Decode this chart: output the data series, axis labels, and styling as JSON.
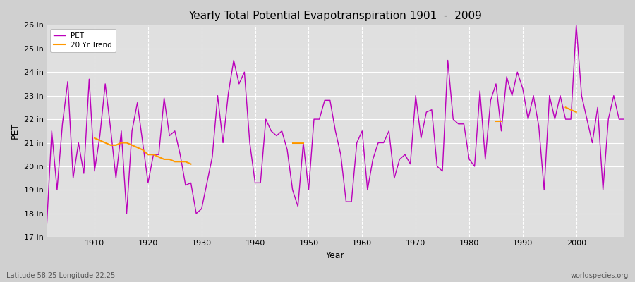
{
  "title": "Yearly Total Potential Evapotranspiration 1901  -  2009",
  "xlabel": "Year",
  "ylabel": "PET",
  "bottom_left_label": "Latitude 58.25 Longitude 22.25",
  "bottom_right_label": "worldspecies.org",
  "ylim": [
    17,
    26
  ],
  "ytick_labels": [
    "17 in",
    "18 in",
    "19 in",
    "20 in",
    "21 in",
    "22 in",
    "23 in",
    "24 in",
    "25 in",
    "26 in"
  ],
  "ytick_values": [
    17,
    18,
    19,
    20,
    21,
    22,
    23,
    24,
    25,
    26
  ],
  "pet_color": "#bb00bb",
  "trend_color": "#ff9900",
  "fig_bg_color": "#d0d0d0",
  "plot_bg_color": "#e0e0e0",
  "grid_color": "#ffffff",
  "pet_years": [
    1901,
    1902,
    1903,
    1904,
    1905,
    1906,
    1907,
    1908,
    1909,
    1910,
    1911,
    1912,
    1913,
    1914,
    1915,
    1916,
    1917,
    1918,
    1919,
    1920,
    1921,
    1922,
    1923,
    1924,
    1925,
    1926,
    1927,
    1928,
    1929,
    1930,
    1931,
    1932,
    1933,
    1934,
    1935,
    1936,
    1937,
    1938,
    1939,
    1940,
    1941,
    1942,
    1943,
    1944,
    1945,
    1946,
    1947,
    1948,
    1949,
    1950,
    1951,
    1952,
    1953,
    1954,
    1955,
    1956,
    1957,
    1958,
    1959,
    1960,
    1961,
    1962,
    1963,
    1964,
    1965,
    1966,
    1967,
    1968,
    1969,
    1970,
    1971,
    1972,
    1973,
    1974,
    1975,
    1976,
    1977,
    1978,
    1979,
    1980,
    1981,
    1982,
    1983,
    1984,
    1985,
    1986,
    1987,
    1988,
    1989,
    1990,
    1991,
    1992,
    1993,
    1994,
    1995,
    1996,
    1997,
    1998,
    1999,
    2000,
    2001,
    2002,
    2003,
    2004,
    2005,
    2006,
    2007,
    2008,
    2009
  ],
  "pet_values": [
    17.2,
    21.5,
    19.0,
    21.8,
    23.6,
    19.5,
    21.0,
    19.7,
    23.7,
    19.8,
    21.3,
    23.5,
    21.6,
    19.5,
    21.5,
    18.0,
    21.5,
    22.7,
    21.0,
    19.3,
    20.5,
    20.5,
    22.9,
    21.3,
    21.5,
    20.5,
    19.2,
    19.3,
    18.0,
    18.2,
    19.3,
    20.4,
    23.0,
    21.0,
    23.1,
    24.5,
    23.5,
    24.0,
    21.0,
    19.3,
    19.3,
    22.0,
    21.5,
    21.3,
    21.5,
    20.7,
    19.0,
    18.3,
    21.0,
    19.0,
    22.0,
    22.0,
    22.8,
    22.8,
    21.5,
    20.5,
    18.5,
    18.5,
    21.0,
    21.5,
    19.0,
    20.3,
    21.0,
    21.0,
    21.5,
    19.5,
    20.3,
    20.5,
    20.1,
    23.0,
    21.2,
    22.3,
    22.4,
    20.0,
    19.8,
    24.5,
    22.0,
    21.8,
    21.8,
    20.3,
    20.0,
    23.2,
    20.3,
    22.8,
    23.5,
    21.5,
    23.8,
    23.0,
    24.0,
    23.3,
    22.0,
    23.0,
    21.7,
    19.0,
    23.0,
    22.0,
    23.0,
    22.0,
    22.0,
    26.0,
    23.0,
    22.0,
    21.0,
    22.5,
    19.0,
    22.0,
    23.0,
    22.0,
    22.0
  ],
  "trend_seg1_years": [
    1910,
    1911,
    1912,
    1913,
    1914,
    1915,
    1916,
    1917,
    1918,
    1919,
    1920,
    1921,
    1922,
    1923,
    1924,
    1925,
    1926,
    1927,
    1928
  ],
  "trend_seg1_values": [
    21.2,
    21.1,
    21.0,
    20.9,
    20.9,
    21.0,
    21.0,
    20.9,
    20.8,
    20.7,
    20.5,
    20.5,
    20.4,
    20.3,
    20.3,
    20.2,
    20.2,
    20.2,
    20.1
  ],
  "trend_seg2_years": [
    1947,
    1948,
    1949
  ],
  "trend_seg2_values": [
    21.0,
    21.0,
    21.0
  ],
  "trend_seg3_years": [
    1985,
    1986
  ],
  "trend_seg3_values": [
    21.9,
    21.9
  ],
  "trend_seg4_years": [
    1998,
    1999,
    2000
  ],
  "trend_seg4_values": [
    22.5,
    22.4,
    22.3
  ]
}
